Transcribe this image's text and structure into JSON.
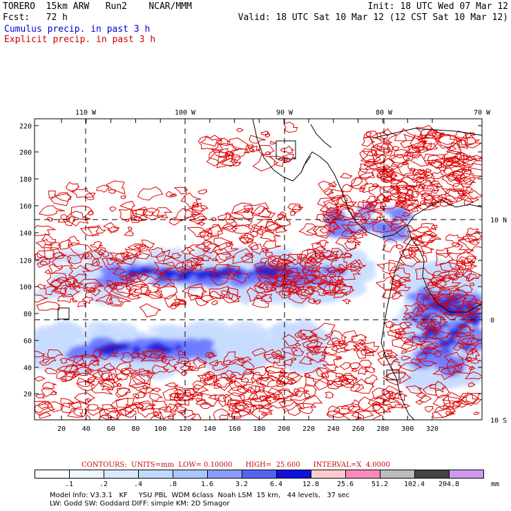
{
  "header": {
    "line1_left": "TORERO  15km ARW   Run2    NCAR/MMM",
    "line1_right": "Init: 18 UTC Wed 07 Mar 12",
    "line2_left": "Fcst:   72 h",
    "line2_right": "Valid: 18 UTC Sat 10 Mar 12 (12 CST Sat 10 Mar 12)",
    "legend_cumulus": "Cumulus precip. in past 3 h",
    "legend_explicit": "Explicit precip. in past 3 h"
  },
  "axes": {
    "top_lon_labels": [
      "110 W",
      "100 W",
      "90 W",
      "80 W",
      "70 W"
    ],
    "right_lat_labels": [
      "10 N",
      "0",
      "10 S"
    ],
    "left_ticks": [
      "220",
      "200",
      "180",
      "160",
      "140",
      "120",
      "100",
      "80",
      "60",
      "40",
      "20"
    ],
    "bottom_ticks": [
      "20",
      "40",
      "60",
      "80",
      "100",
      "120",
      "140",
      "160",
      "180",
      "200",
      "220",
      "240",
      "260",
      "280",
      "300",
      "320"
    ]
  },
  "contour_info": "CONTOURS:  UNITS=mm  LOW= 0.10000      HIGH=  25.600      INTERVAL=X  4.0000",
  "colorbar": {
    "labels": [
      ".1",
      ".2",
      ".4",
      ".8",
      "1.6",
      "3.2",
      "6.4",
      "12.8",
      "25.6",
      "51.2",
      "102.4",
      "204.8"
    ],
    "unit": "mm",
    "colors": [
      "#ffffff",
      "#eef6ff",
      "#d8eaff",
      "#bfdcff",
      "#a9c8ff",
      "#8a9cff",
      "#5566ee",
      "#1111dd",
      "#ffcccc",
      "#ff88bb",
      "#bbbbbb",
      "#444444",
      "#cc99ee"
    ]
  },
  "model_info": {
    "line1": "Model Info: V3.3.1   KF     YSU PBL  WDM 6class  Noah LSM  15 km,   44 levels,   37 sec",
    "line2": "LW: Godd SW: Goddard DIFF: simple KM: 2D Smagor"
  },
  "colors": {
    "explicit": "#dd0000",
    "cumulus_light": "#c8dcff",
    "cumulus_mid": "#6f7dff",
    "cumulus_dark": "#2020dd"
  }
}
